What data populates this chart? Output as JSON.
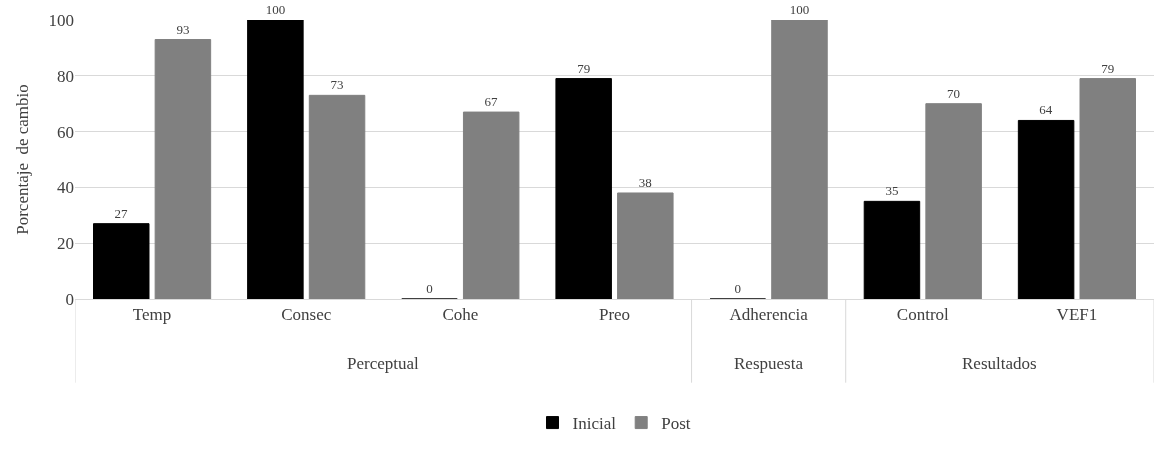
{
  "chart_data": {
    "type": "bar",
    "ylabel": "Porcentaje  de cambio",
    "categories": [
      "Temp",
      "Consec",
      "Cohe",
      "Preo",
      "Adherencia",
      "Control",
      "VEF1"
    ],
    "series": [
      {
        "name": "Inicial",
        "color": "#000000",
        "values": [
          27,
          100,
          0,
          79,
          0,
          35,
          64
        ]
      },
      {
        "name": "Post",
        "color": "#808080",
        "values": [
          93,
          73,
          67,
          38,
          100,
          70,
          79
        ]
      }
    ],
    "annotations": [
      "Perceptual",
      "Respuesta",
      "Resultados"
    ],
    "ylim": [
      0,
      100
    ],
    "yticks": [
      0,
      20,
      40,
      60,
      80,
      100
    ],
    "grid": "y",
    "legend": "bottom",
    "data_labels": true
  }
}
